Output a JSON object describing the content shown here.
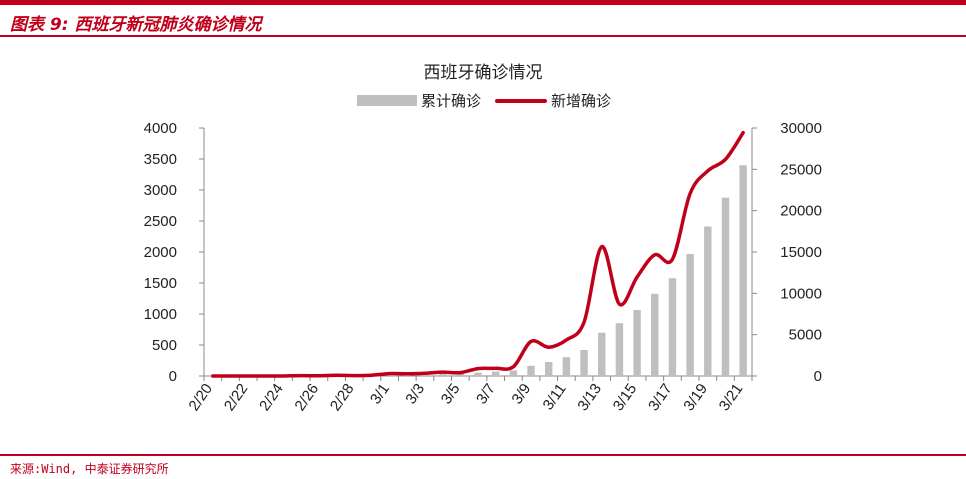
{
  "header": {
    "title": "图表 9:  西班牙新冠肺炎确诊情况"
  },
  "footer": {
    "source": "来源:Wind, 中泰证券研究所"
  },
  "colors": {
    "brand": "#c0001b",
    "bar": "#bfbfbf",
    "line": "#c0001b"
  },
  "chart_data": {
    "type": "bar",
    "title": "西班牙确诊情况",
    "legend_position": "top",
    "grid": false,
    "categories": [
      "2/20",
      "2/21",
      "2/22",
      "2/23",
      "2/24",
      "2/25",
      "2/26",
      "2/27",
      "2/28",
      "2/29",
      "3/1",
      "3/2",
      "3/3",
      "3/4",
      "3/5",
      "3/6",
      "3/7",
      "3/8",
      "3/9",
      "3/10",
      "3/11",
      "3/12",
      "3/13",
      "3/14",
      "3/15",
      "3/16",
      "3/17",
      "3/18",
      "3/19",
      "3/20",
      "3/21"
    ],
    "x_tick_labels": [
      "2/20",
      "2/22",
      "2/24",
      "2/26",
      "2/28",
      "3/1",
      "3/3",
      "3/5",
      "3/7",
      "3/9",
      "3/11",
      "3/13",
      "3/15",
      "3/17",
      "3/19",
      "3/21"
    ],
    "y_left": {
      "min": 0,
      "max": 4000,
      "ticks": [
        "0",
        "500",
        "1000",
        "1500",
        "2000",
        "2500",
        "3000",
        "3500",
        "4000"
      ]
    },
    "y_right": {
      "min": 0,
      "max": 30000,
      "ticks": [
        "0",
        "5000",
        "10000",
        "15000",
        "20000",
        "25000",
        "30000"
      ]
    },
    "series": [
      {
        "name": "累计确诊",
        "type": "bar",
        "axis": "right",
        "values": [
          2,
          2,
          2,
          2,
          3,
          9,
          13,
          25,
          32,
          45,
          84,
          120,
          165,
          228,
          282,
          401,
          525,
          674,
          1231,
          1695,
          2277,
          3146,
          5232,
          6391,
          7988,
          9942,
          11826,
          14769,
          18077,
          21571,
          25496
        ]
      },
      {
        "name": "新增确诊",
        "type": "line",
        "axis": "left",
        "values": [
          0,
          0,
          0,
          0,
          1,
          6,
          4,
          12,
          7,
          13,
          39,
          36,
          45,
          63,
          54,
          119,
          124,
          149,
          557,
          464,
          582,
          869,
          2086,
          1159,
          1597,
          1954,
          1884,
          2943,
          3308,
          3494,
          3925
        ]
      }
    ]
  }
}
